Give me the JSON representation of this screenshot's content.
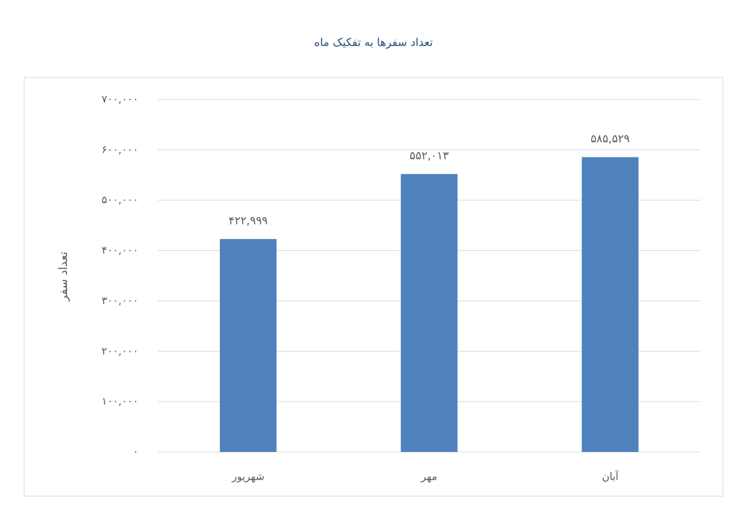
{
  "chart_data": {
    "type": "bar",
    "title": "تعداد سفرها به تفکیک ماه",
    "y_label": "تعداد سفر",
    "categories": [
      "شهریور",
      "مهر",
      "آبان"
    ],
    "values": [
      422999,
      552013,
      585529
    ],
    "value_labels": [
      "۴۲۲,۹۹۹",
      "۵۵۲,۰۱۳",
      "۵۸۵,۵۲۹"
    ],
    "color": "#4f81bd",
    "ylim": [
      0,
      700000
    ],
    "yticks": [
      {
        "value": 0,
        "label": "۰"
      },
      {
        "value": 100000,
        "label": "۱۰۰,۰۰۰"
      },
      {
        "value": 200000,
        "label": "۲۰۰,۰۰۰"
      },
      {
        "value": 300000,
        "label": "۳۰۰,۰۰۰"
      },
      {
        "value": 400000,
        "label": "۴۰۰,۰۰۰"
      },
      {
        "value": 500000,
        "label": "۵۰۰,۰۰۰"
      },
      {
        "value": 600000,
        "label": "۶۰۰,۰۰۰"
      },
      {
        "value": 700000,
        "label": "۷۰۰,۰۰۰"
      }
    ],
    "grid": true
  }
}
